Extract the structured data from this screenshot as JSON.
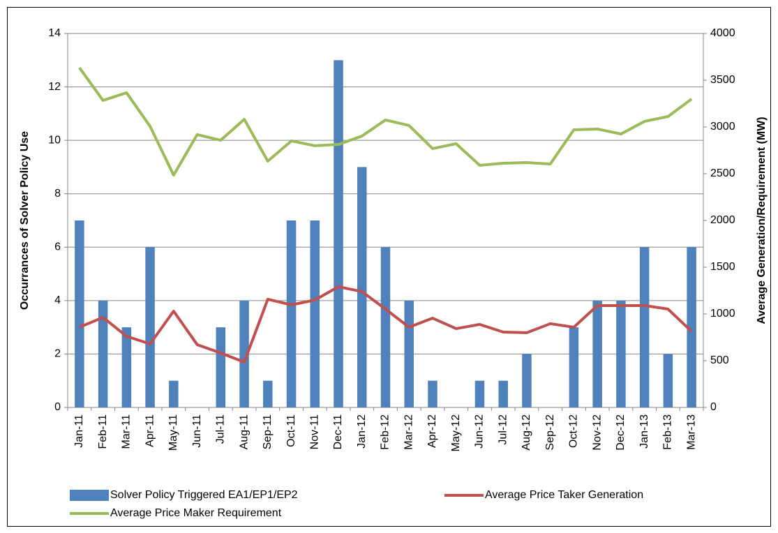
{
  "chart_data": {
    "type": "bar",
    "categories": [
      "Jan-11",
      "Feb-11",
      "Mar-11",
      "Apr-11",
      "May-11",
      "Jun-11",
      "Jul-11",
      "Aug-11",
      "Sep-11",
      "Oct-11",
      "Nov-11",
      "Dec-11",
      "Jan-12",
      "Feb-12",
      "Mar-12",
      "Apr-12",
      "May-12",
      "Jun-12",
      "Jul-12",
      "Aug-12",
      "Sep-12",
      "Oct-12",
      "Nov-12",
      "Dec-12",
      "Jan-13",
      "Feb-13",
      "Mar-13"
    ],
    "series": [
      {
        "name": "Solver Policy Triggered EA1/EP1/EP2",
        "type": "bar",
        "color": "#4f81bd",
        "values": [
          7,
          4,
          3,
          6,
          1,
          0,
          3,
          4,
          1,
          7,
          7,
          13,
          9,
          6,
          4,
          1,
          0,
          1,
          1,
          2,
          0,
          3,
          4,
          4,
          6,
          2,
          6
        ]
      },
      {
        "name": "Average Price Taker Generation",
        "type": "line",
        "axis": "y2",
        "color": "#c0504d",
        "values": [
          858,
          963,
          761,
          679,
          1030,
          672,
          582,
          485,
          1157,
          1097,
          1149,
          1291,
          1239,
          1052,
          858,
          955,
          843,
          888,
          806,
          799,
          896,
          858,
          1090,
          1090,
          1090,
          1052,
          813
        ]
      },
      {
        "name": "Average Price Maker Requirement",
        "type": "line",
        "axis": "y2",
        "color": "#9bbb59",
        "values": [
          3634,
          3284,
          3366,
          3007,
          2485,
          2918,
          2858,
          3082,
          2634,
          2851,
          2799,
          2813,
          2903,
          3075,
          3015,
          2769,
          2821,
          2590,
          2612,
          2619,
          2604,
          2970,
          2978,
          2925,
          3060,
          3112,
          3299
        ]
      }
    ],
    "y_label": "Occurrances of Solver Policy Use",
    "y2_label": "Average Generation/Requirement (MW)",
    "ylim": [
      0,
      14
    ],
    "yticks": [
      0,
      2,
      4,
      6,
      8,
      10,
      12,
      14
    ],
    "y2lim": [
      0,
      4000
    ],
    "y2ticks": [
      0,
      500,
      1000,
      1500,
      2000,
      2500,
      3000,
      3500,
      4000
    ],
    "grid": true
  }
}
